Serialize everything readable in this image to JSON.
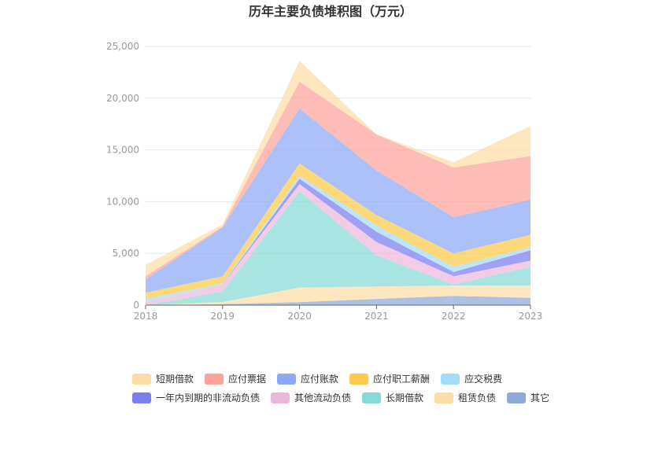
{
  "chart_data": {
    "type": "area",
    "stacked": true,
    "title": "历年主要负债堆积图（万元）",
    "x": [
      "2018",
      "2019",
      "2020",
      "2021",
      "2022",
      "2023"
    ],
    "y_ticks": [
      "0",
      "5,000",
      "10,000",
      "15,000",
      "20,000",
      "25,000"
    ],
    "ylim": [
      0,
      25000
    ],
    "grid": true,
    "legend_position": "bottom",
    "series": [
      {
        "name": "其它",
        "color": "#8EAAD8",
        "values": [
          0,
          100,
          300,
          600,
          900,
          700
        ]
      },
      {
        "name": "租赁负债",
        "color": "#FDDCA6",
        "values": [
          0,
          200,
          1400,
          1200,
          1000,
          1200
        ]
      },
      {
        "name": "长期借款",
        "color": "#86D9D6",
        "values": [
          0,
          1000,
          9300,
          3000,
          100,
          1800
        ]
      },
      {
        "name": "其他流动负债",
        "color": "#EBB8DA",
        "values": [
          300,
          700,
          700,
          1300,
          800,
          600
        ]
      },
      {
        "name": "一年内到期的非流动负债",
        "color": "#7B7DF1",
        "values": [
          0,
          0,
          500,
          1000,
          400,
          1000
        ]
      },
      {
        "name": "应交税费",
        "color": "#A2DDF8",
        "values": [
          300,
          100,
          300,
          600,
          500,
          300
        ]
      },
      {
        "name": "应付职工薪酬",
        "color": "#FDCA49",
        "values": [
          600,
          700,
          1200,
          1000,
          1300,
          1200
        ]
      },
      {
        "name": "应付账款",
        "color": "#8CA9F8",
        "values": [
          1300,
          4700,
          5300,
          4300,
          3500,
          3400
        ]
      },
      {
        "name": "应付票据",
        "color": "#FCA49A",
        "values": [
          300,
          100,
          2600,
          3500,
          4800,
          4200
        ]
      },
      {
        "name": "短期借款",
        "color": "#FDDCA6",
        "values": [
          1100,
          200,
          2000,
          0,
          500,
          2900
        ]
      }
    ],
    "legend": [
      [
        "短期借款",
        "应付票据",
        "应付账款",
        "应付职工薪酬",
        "应交税费"
      ],
      [
        "一年内到期的非流动负债",
        "其他流动负债",
        "长期借款",
        "租赁负债",
        "其它"
      ]
    ]
  }
}
